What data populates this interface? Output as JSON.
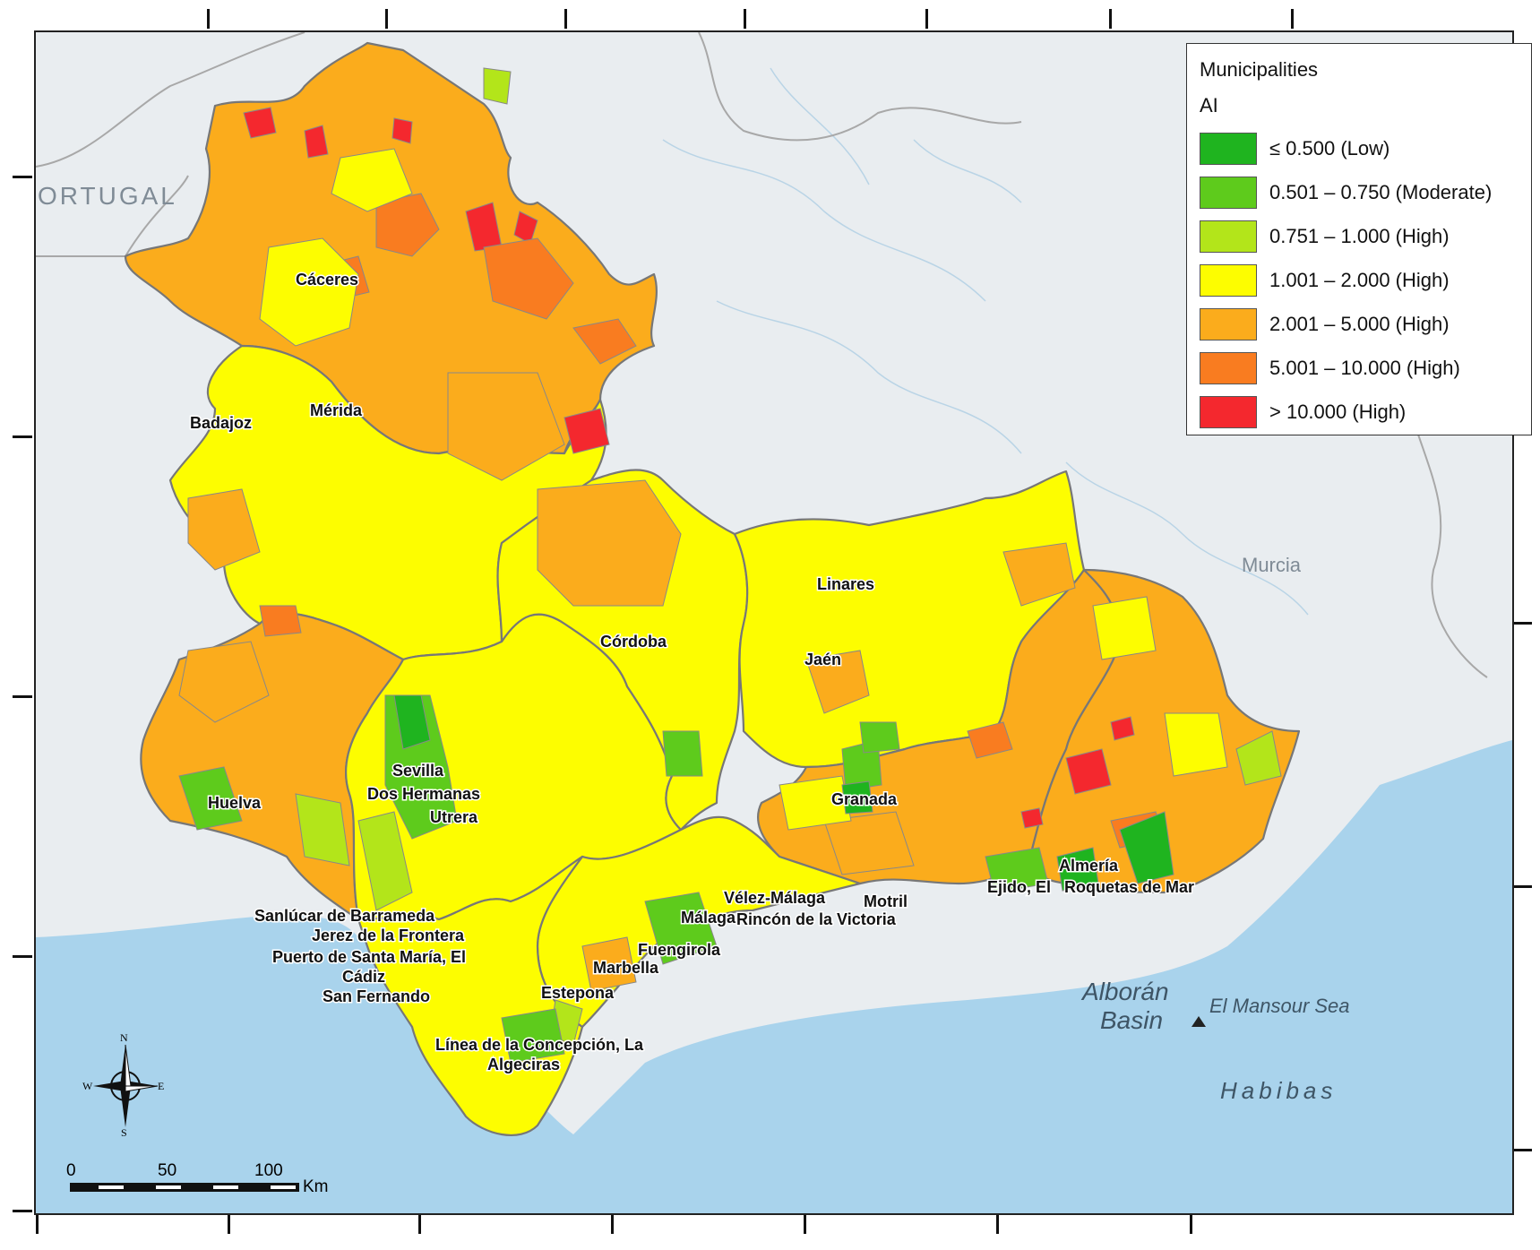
{
  "legend": {
    "title": "Municipalities",
    "subtitle": "AI",
    "classes": [
      {
        "label": "≤ 0.500 (Low)",
        "color": "#1fb41f"
      },
      {
        "label": "0.501 – 0.750 (Moderate)",
        "color": "#5ecb1c"
      },
      {
        "label": "0.751 – 1.000 (High)",
        "color": "#b3e51a"
      },
      {
        "label": "1.001 – 2.000 (High)",
        "color": "#fdfd00"
      },
      {
        "label": "2.001 – 5.000 (High)",
        "color": "#fbac1c"
      },
      {
        "label": "5.001 – 10.000 (High)",
        "color": "#f97c20"
      },
      {
        "label": "> 10.000 (High)",
        "color": "#f4282e"
      }
    ]
  },
  "cities": {
    "caceres": "Cáceres",
    "badajoz": "Badajoz",
    "merida": "Mérida",
    "cordoba": "Córdoba",
    "linares": "Linares",
    "jaen": "Jaén",
    "sevilla": "Sevilla",
    "dos_hermanas": "Dos Hermanas",
    "utrera": "Utrera",
    "huelva": "Huelva",
    "granada": "Granada",
    "almeria": "Almería",
    "ejido": "Ejido, El",
    "roquetas": "Roquetas de Mar",
    "velez": "Vélez-Málaga",
    "motril": "Motril",
    "malaga": "Málaga",
    "rincon": "Rincón de la Victoria",
    "fuengirola": "Fuengirola",
    "marbella": "Marbella",
    "estepona": "Estepona",
    "sanlucar": "Sanlúcar de Barrameda",
    "jerez": "Jerez de la Frontera",
    "puerto": "Puerto de Santa María, El",
    "cadiz": "Cádiz",
    "san_fernando": "San Fernando",
    "linea": "Línea de la Concepción, La",
    "algeciras": "Algeciras"
  },
  "basemap": {
    "portugal": "ORTUGAL",
    "murcia": "Murcia",
    "alboran": "Alborán",
    "basin": "Basin",
    "mansour": "El Mansour Sea",
    "habibas": "Habibas"
  },
  "scale": {
    "ticks": [
      "0",
      "50",
      "100"
    ],
    "unit": "Km"
  },
  "north_arrow": {
    "n": "N",
    "s": "S",
    "e": "E",
    "w": "W"
  },
  "colors": {
    "sea": "#a9d3ec",
    "land": "#e9edf0",
    "border": "#6e6e6e"
  }
}
